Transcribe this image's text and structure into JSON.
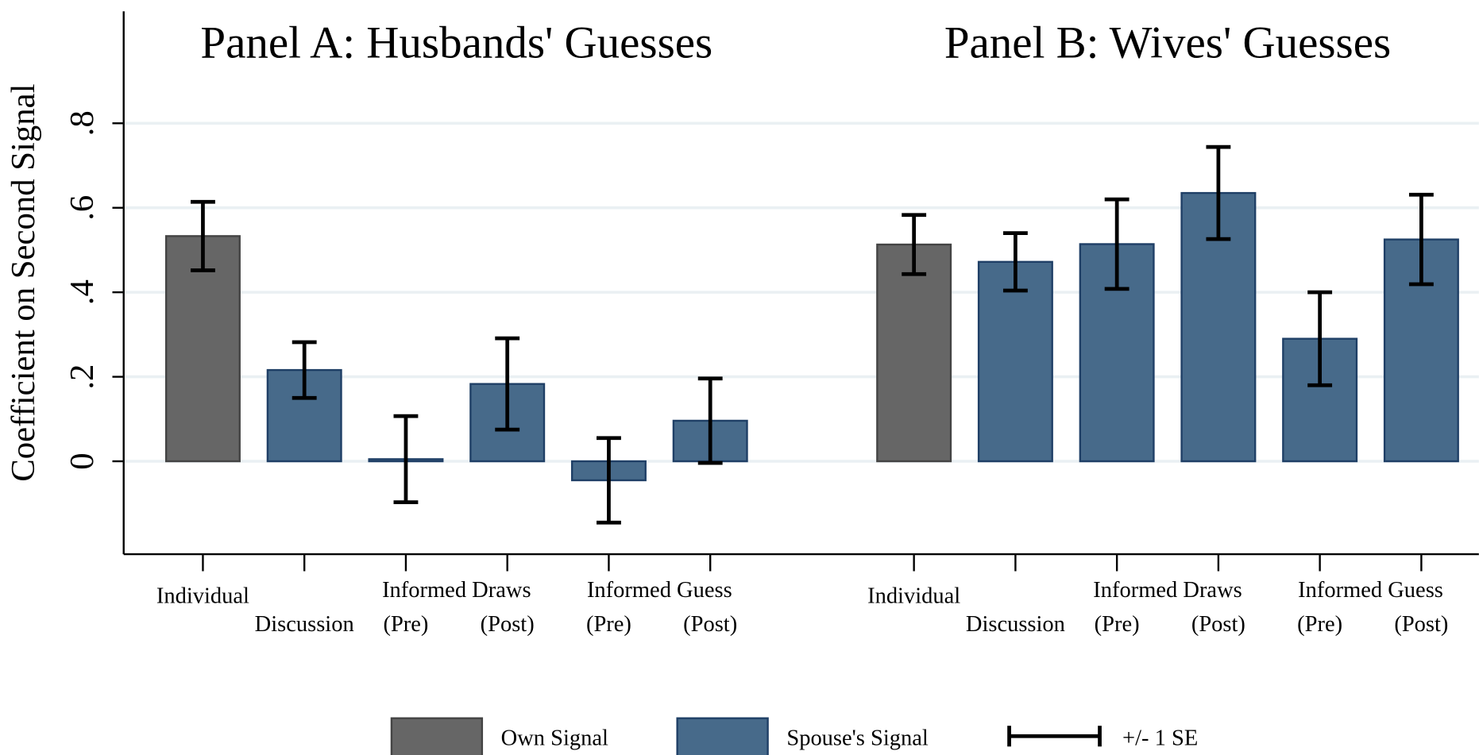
{
  "chart_data": {
    "type": "bar",
    "ylabel": "Coefficient on Second Signal",
    "ylim": [
      -0.22,
      1.065
    ],
    "yticks": [
      0,
      {
        "value": 0.2,
        "label": ".2"
      },
      {
        "value": 0.4,
        "label": ".4"
      },
      {
        "value": 0.6,
        "label": ".6"
      },
      {
        "value": 0.8,
        "label": ".8"
      }
    ],
    "grid": true,
    "series": [
      {
        "name": "Own Signal",
        "color": "#666666"
      },
      {
        "name": "Spouse's Signal",
        "color": "#476a8a"
      }
    ],
    "error_label": "+/- 1 SE",
    "panels": [
      {
        "title": "Panel A: Husbands' Guesses",
        "categories": [
          "Individual",
          "Discussion",
          "(Pre)",
          "(Post)",
          "(Pre)",
          "(Post)"
        ],
        "category_groups": [
          {
            "label": "Informed Draws",
            "members": [
              2,
              3
            ]
          },
          {
            "label": "Informed Guess",
            "members": [
              4,
              5
            ]
          }
        ],
        "bar_series": [
          0,
          1,
          1,
          1,
          1,
          1
        ],
        "values": [
          0.533,
          0.216,
          0.005,
          0.183,
          -0.045,
          0.096
        ],
        "errors": [
          0.081,
          0.066,
          0.102,
          0.108,
          0.1,
          0.1
        ]
      },
      {
        "title": "Panel B: Wives' Guesses",
        "categories": [
          "Individual",
          "Discussion",
          "(Pre)",
          "(Post)",
          "(Pre)",
          "(Post)"
        ],
        "category_groups": [
          {
            "label": "Informed Draws",
            "members": [
              2,
              3
            ]
          },
          {
            "label": "Informed Guess",
            "members": [
              4,
              5
            ]
          }
        ],
        "bar_series": [
          0,
          1,
          1,
          1,
          1,
          1
        ],
        "values": [
          0.513,
          0.472,
          0.514,
          0.635,
          0.29,
          0.525
        ],
        "errors": [
          0.07,
          0.068,
          0.106,
          0.109,
          0.11,
          0.106
        ]
      }
    ]
  }
}
